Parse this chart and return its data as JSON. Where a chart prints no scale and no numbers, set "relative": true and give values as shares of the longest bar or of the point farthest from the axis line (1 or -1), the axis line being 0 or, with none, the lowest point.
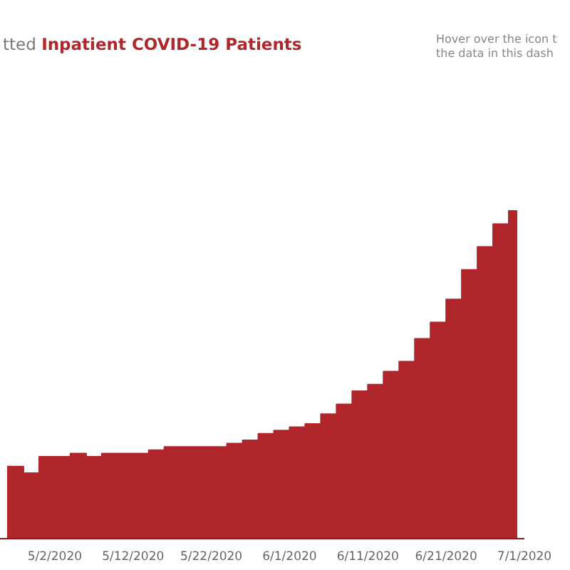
{
  "chart_data": {
    "type": "area",
    "title": "tted Inpatient COVID-19 Patients",
    "annotations": [
      "Hover over the icon t",
      "the data in this dash"
    ],
    "relative": true,
    "color": "#b0262a",
    "x": [
      "2020-04-26",
      "2020-04-28",
      "2020-04-30",
      "2020-05-02",
      "2020-05-04",
      "2020-05-06",
      "2020-05-08",
      "2020-05-10",
      "2020-05-12",
      "2020-05-14",
      "2020-05-16",
      "2020-05-18",
      "2020-05-20",
      "2020-05-22",
      "2020-05-24",
      "2020-05-26",
      "2020-05-28",
      "2020-05-30",
      "2020-06-01",
      "2020-06-03",
      "2020-06-05",
      "2020-06-07",
      "2020-06-09",
      "2020-06-11",
      "2020-06-13",
      "2020-06-15",
      "2020-06-17",
      "2020-06-19",
      "2020-06-21",
      "2020-06-23",
      "2020-06-25",
      "2020-06-27",
      "2020-06-29",
      "2020-06-30"
    ],
    "values": [
      0.22,
      0.2,
      0.25,
      0.25,
      0.26,
      0.25,
      0.26,
      0.26,
      0.26,
      0.27,
      0.28,
      0.28,
      0.28,
      0.28,
      0.29,
      0.3,
      0.32,
      0.33,
      0.34,
      0.35,
      0.38,
      0.41,
      0.45,
      0.47,
      0.51,
      0.54,
      0.61,
      0.66,
      0.73,
      0.82,
      0.89,
      0.96,
      1,
      1
    ],
    "xlim": [
      "2020-04-25",
      "2020-07-01"
    ],
    "xticks": [
      {
        "value": "2020-05-02",
        "label": "5/2/2020"
      },
      {
        "value": "2020-05-12",
        "label": "5/12/2020"
      },
      {
        "value": "2020-05-22",
        "label": "5/22/2020"
      },
      {
        "value": "2020-06-01",
        "label": "6/1/2020"
      },
      {
        "value": "2020-06-11",
        "label": "6/11/2020"
      },
      {
        "value": "2020-06-21",
        "label": "6/21/2020"
      },
      {
        "value": "2020-07-01",
        "label": "7/1/2020"
      }
    ],
    "tick_labels": "x"
  }
}
